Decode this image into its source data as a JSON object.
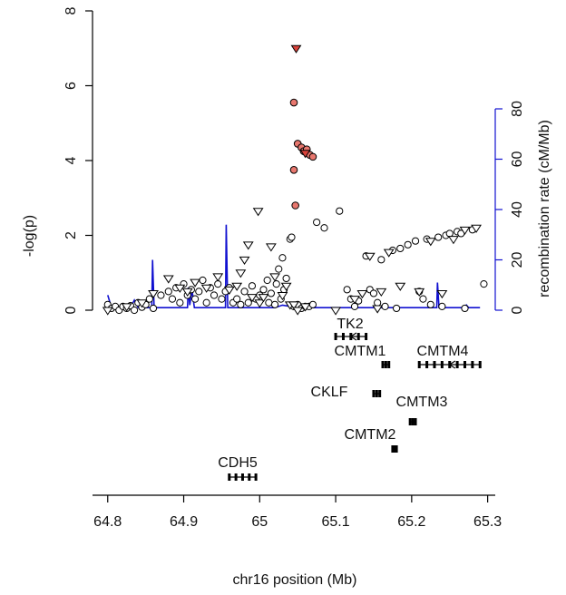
{
  "chart_data": {
    "type": "scatter",
    "title": "",
    "xlabel": "chr16 position (Mb)",
    "ylabel": "-log(p)",
    "y2label": "recombination rate (cM/Mb)",
    "xlim": [
      64.78,
      65.31
    ],
    "ylim": [
      0,
      8
    ],
    "y2lim": [
      0,
      80
    ],
    "x_ticks": [
      "64.8",
      "64.9",
      "65",
      "65.1",
      "65.2",
      "65.3"
    ],
    "y_ticks": [
      "0",
      "2",
      "4",
      "6",
      "8"
    ],
    "y2_ticks": [
      "0",
      "20",
      "40",
      "60",
      "80"
    ],
    "colors": {
      "points": "#000000",
      "highlight": "#e8776e",
      "recombination": "#1010d0",
      "genes": "#000000"
    },
    "series": [
      {
        "marker": "circle",
        "points": [
          [
            64.8,
            0.15
          ],
          [
            64.805,
            0.05
          ],
          [
            64.81,
            0.1
          ],
          [
            64.815,
            0.0
          ],
          [
            64.82,
            0.1
          ],
          [
            64.825,
            0.05
          ],
          [
            64.83,
            0.12
          ],
          [
            64.835,
            0.0
          ],
          [
            64.84,
            0.2
          ],
          [
            64.845,
            0.08
          ],
          [
            64.85,
            0.15
          ],
          [
            64.855,
            0.3
          ],
          [
            64.86,
            0.05
          ],
          [
            64.87,
            0.4
          ],
          [
            64.88,
            0.5
          ],
          [
            64.885,
            0.3
          ],
          [
            64.89,
            0.6
          ],
          [
            64.895,
            0.2
          ],
          [
            64.9,
            0.7
          ],
          [
            64.905,
            0.4
          ],
          [
            64.91,
            0.55
          ],
          [
            64.915,
            0.3
          ],
          [
            64.92,
            0.5
          ],
          [
            64.925,
            0.8
          ],
          [
            64.93,
            0.2
          ],
          [
            64.935,
            0.6
          ],
          [
            64.94,
            0.4
          ],
          [
            64.945,
            0.7
          ],
          [
            64.95,
            0.3
          ],
          [
            64.955,
            0.5
          ],
          [
            64.96,
            0.6
          ],
          [
            64.965,
            0.2
          ],
          [
            64.97,
            0.3
          ],
          [
            64.975,
            0.15
          ],
          [
            64.98,
            0.5
          ],
          [
            64.985,
            0.2
          ],
          [
            64.99,
            0.65
          ],
          [
            64.995,
            0.3
          ],
          [
            65.0,
            0.4
          ],
          [
            65.005,
            0.55
          ],
          [
            65.01,
            0.8
          ],
          [
            65.012,
            0.2
          ],
          [
            65.015,
            0.45
          ],
          [
            65.02,
            0.15
          ],
          [
            65.022,
            0.7
          ],
          [
            65.025,
            1.1
          ],
          [
            65.028,
            0.3
          ],
          [
            65.03,
            1.4
          ],
          [
            65.032,
            0.55
          ],
          [
            65.035,
            0.85
          ],
          [
            65.04,
            1.9
          ],
          [
            65.042,
            1.95
          ],
          [
            65.045,
            0.1
          ],
          [
            65.05,
            0.15
          ],
          [
            65.055,
            0.05
          ],
          [
            65.06,
            0.1
          ],
          [
            65.065,
            0.1
          ],
          [
            65.07,
            0.15
          ],
          [
            65.075,
            2.35
          ],
          [
            65.085,
            2.2
          ],
          [
            65.105,
            2.65
          ],
          [
            65.115,
            0.55
          ],
          [
            65.12,
            0.3
          ],
          [
            65.125,
            0.1
          ],
          [
            65.13,
            0.25
          ],
          [
            65.14,
            1.45
          ],
          [
            65.145,
            0.55
          ],
          [
            65.15,
            0.45
          ],
          [
            65.155,
            0.2
          ],
          [
            65.16,
            1.35
          ],
          [
            65.165,
            0.1
          ],
          [
            65.175,
            1.6
          ],
          [
            65.18,
            0.05
          ],
          [
            65.185,
            1.65
          ],
          [
            65.195,
            1.75
          ],
          [
            65.205,
            1.85
          ],
          [
            65.21,
            0.5
          ],
          [
            65.215,
            0.3
          ],
          [
            65.22,
            1.9
          ],
          [
            65.225,
            0.15
          ],
          [
            65.235,
            1.95
          ],
          [
            65.24,
            0.1
          ],
          [
            65.245,
            2.0
          ],
          [
            65.25,
            2.05
          ],
          [
            65.26,
            2.1
          ],
          [
            65.265,
            2.05
          ],
          [
            65.27,
            0.05
          ],
          [
            65.28,
            2.15
          ],
          [
            65.295,
            0.7
          ]
        ]
      },
      {
        "marker": "triangle-down",
        "points": [
          [
            64.8,
            0.0
          ],
          [
            64.825,
            0.1
          ],
          [
            64.845,
            0.2
          ],
          [
            64.86,
            0.45
          ],
          [
            64.88,
            0.85
          ],
          [
            64.895,
            0.6
          ],
          [
            64.905,
            0.5
          ],
          [
            64.915,
            0.75
          ],
          [
            64.93,
            0.6
          ],
          [
            64.945,
            0.9
          ],
          [
            64.96,
            0.55
          ],
          [
            64.97,
            0.65
          ],
          [
            64.975,
            1.0
          ],
          [
            64.98,
            1.35
          ],
          [
            64.985,
            1.75
          ],
          [
            64.99,
            0.35
          ],
          [
            65.0,
            0.2
          ],
          [
            65.005,
            0.35
          ],
          [
            65.015,
            1.7
          ],
          [
            65.02,
            0.9
          ],
          [
            65.03,
            0.4
          ],
          [
            65.035,
            0.65
          ],
          [
            65.04,
            0.15
          ],
          [
            65.045,
            0.15
          ],
          [
            65.05,
            0.0
          ],
          [
            65.06,
            0.1
          ],
          [
            65.1,
            0.0
          ],
          [
            65.125,
            0.3
          ],
          [
            65.135,
            0.45
          ],
          [
            65.145,
            1.45
          ],
          [
            65.155,
            0.05
          ],
          [
            65.16,
            0.5
          ],
          [
            65.17,
            1.55
          ],
          [
            65.185,
            0.65
          ],
          [
            65.21,
            0.5
          ],
          [
            65.225,
            1.85
          ],
          [
            65.24,
            0.45
          ],
          [
            65.255,
            1.9
          ],
          [
            65.27,
            2.15
          ],
          [
            65.285,
            2.2
          ],
          [
            64.998,
            2.65
          ]
        ]
      },
      {
        "marker": "circle-highlight",
        "points": [
          [
            65.045,
            5.55
          ],
          [
            65.05,
            4.45
          ],
          [
            65.055,
            4.35
          ],
          [
            65.058,
            4.25
          ],
          [
            65.062,
            4.3
          ],
          [
            65.066,
            4.15
          ],
          [
            65.07,
            4.1
          ],
          [
            65.045,
            3.75
          ],
          [
            65.047,
            2.8
          ]
        ]
      },
      {
        "marker": "triangle-highlight",
        "points": [
          [
            65.048,
            7.0
          ],
          [
            65.06,
            4.2
          ]
        ]
      }
    ],
    "recombination": [
      [
        64.8,
        6
      ],
      [
        64.805,
        1
      ],
      [
        64.83,
        1
      ],
      [
        64.835,
        4
      ],
      [
        64.84,
        1
      ],
      [
        64.858,
        1
      ],
      [
        64.859,
        20
      ],
      [
        64.861,
        1
      ],
      [
        64.905,
        1
      ],
      [
        64.906,
        9
      ],
      [
        64.908,
        2
      ],
      [
        64.911,
        8
      ],
      [
        64.914,
        1
      ],
      [
        64.94,
        1
      ],
      [
        64.955,
        1
      ],
      [
        64.956,
        34
      ],
      [
        64.958,
        1
      ],
      [
        65.0,
        1
      ],
      [
        65.02,
        1
      ],
      [
        65.03,
        2
      ],
      [
        65.05,
        1
      ],
      [
        65.1,
        1
      ],
      [
        65.15,
        1
      ],
      [
        65.2,
        1
      ],
      [
        65.233,
        1
      ],
      [
        65.234,
        11
      ],
      [
        65.236,
        1
      ],
      [
        65.27,
        1
      ],
      [
        65.272,
        2
      ],
      [
        65.275,
        1
      ],
      [
        65.29,
        1
      ]
    ],
    "genes": [
      {
        "name": "TK2",
        "start": 65.1,
        "end": 65.14,
        "row": 0,
        "strand": "-"
      },
      {
        "name": "CMTM1",
        "start": 65.162,
        "end": 65.17,
        "row": 1,
        "strand": "+"
      },
      {
        "name": "CMTM4",
        "start": 65.21,
        "end": 65.29,
        "row": 1,
        "strand": "-"
      },
      {
        "name": "CKLF",
        "start": 65.15,
        "end": 65.158,
        "row": 2,
        "strand": "+"
      },
      {
        "name": "CMTM3",
        "start": 65.198,
        "end": 65.205,
        "row": 3,
        "strand": "+"
      },
      {
        "name": "CMTM2",
        "start": 65.175,
        "end": 65.18,
        "row": 4,
        "strand": "+"
      },
      {
        "name": "CDH5",
        "start": 64.96,
        "end": 64.995,
        "row": 5,
        "strand": "+"
      }
    ]
  }
}
